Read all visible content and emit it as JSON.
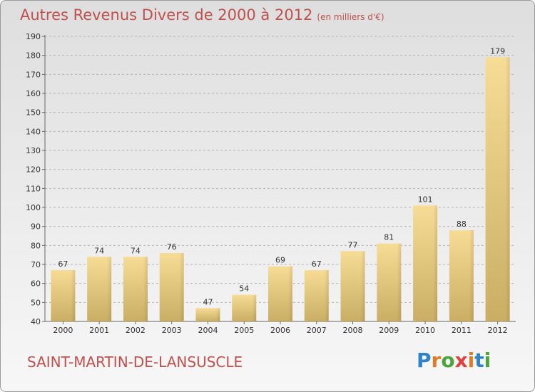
{
  "header": {
    "title": "Autres Revenus Divers de 2000 à 2012",
    "subtitle": "(en milliers d'€)"
  },
  "footer": {
    "commune": "SAINT-MARTIN-DE-LANSUSCLE",
    "logo": "Proxiti"
  },
  "colors": {
    "title": "#c0504d",
    "bar_light": "#f7dc95",
    "bar_dark": "#c9ae64",
    "logo_letters": [
      "#2f83c6",
      "#e07b2a",
      "#4aa63c",
      "#e04040",
      "#e07b2a",
      "#2f83c6",
      "#4aa63c"
    ]
  },
  "chart_data": {
    "type": "bar",
    "title": "Autres Revenus Divers de 2000 à 2012",
    "subtitle": "(en milliers d'€)",
    "categories": [
      "2000",
      "2001",
      "2002",
      "2003",
      "2004",
      "2005",
      "2006",
      "2007",
      "2008",
      "2009",
      "2010",
      "2011",
      "2012"
    ],
    "values": [
      67,
      74,
      74,
      76,
      47,
      54,
      69,
      67,
      77,
      81,
      101,
      88,
      179
    ],
    "ylim": [
      40,
      190
    ],
    "yticks": [
      40,
      50,
      60,
      70,
      80,
      90,
      100,
      110,
      120,
      130,
      140,
      150,
      160,
      170,
      180,
      190
    ],
    "grid": "horizontal-dashed",
    "data_labels": true
  }
}
